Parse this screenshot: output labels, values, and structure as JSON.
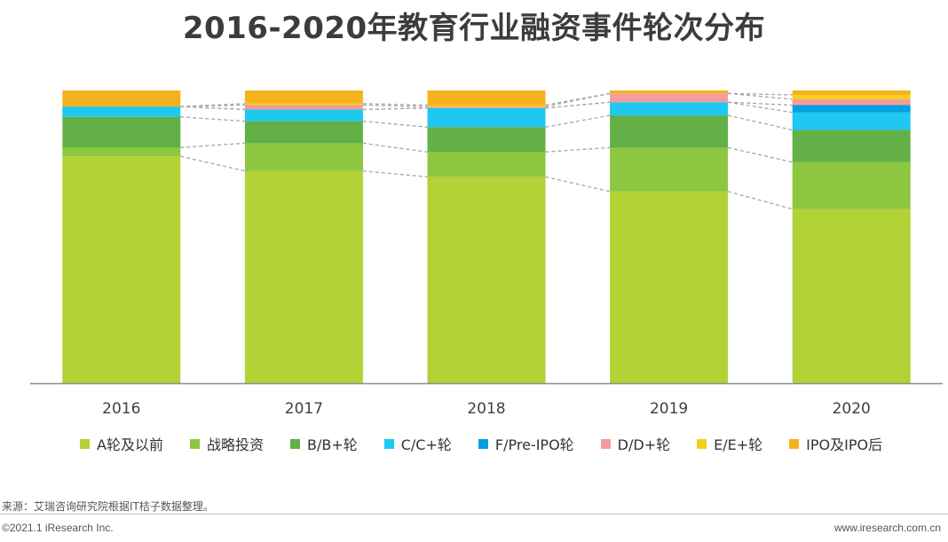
{
  "chart_data": {
    "type": "bar",
    "stacked": true,
    "normalized": true,
    "title": "2016-2020年教育行业融资事件轮次分布",
    "categories": [
      "2016",
      "2017",
      "2018",
      "2019",
      "2020"
    ],
    "ylim": [
      0,
      100
    ],
    "series": [
      {
        "name": "A轮及以前",
        "color": "#b2d235",
        "values": [
          77.5,
          72.5,
          70.5,
          65.5,
          59.5
        ]
      },
      {
        "name": "战略投资",
        "color": "#8dc63f",
        "values": [
          3.0,
          9.5,
          8.5,
          15.0,
          16.0
        ]
      },
      {
        "name": "B/B+轮",
        "color": "#62b046",
        "values": [
          10.5,
          7.5,
          8.5,
          11.0,
          11.0
        ]
      },
      {
        "name": "C/C+轮",
        "color": "#1ec8f0",
        "values": [
          3.5,
          4.0,
          6.5,
          4.5,
          6.0
        ]
      },
      {
        "name": "F/Pre-IPO轮",
        "color": "#00a0e0",
        "values": [
          0.0,
          0.0,
          0.0,
          0.0,
          2.5
        ]
      },
      {
        "name": "D/D+轮",
        "color": "#f49c9c",
        "values": [
          0.0,
          1.5,
          0.5,
          3.0,
          2.0
        ]
      },
      {
        "name": "E/E+轮",
        "color": "#f7ce1b",
        "values": [
          0.0,
          0.5,
          0.5,
          0.0,
          1.5
        ]
      },
      {
        "name": "IPO及IPO后",
        "color": "#f6b21c",
        "values": [
          5.5,
          4.5,
          5.0,
          1.0,
          1.5
        ]
      }
    ]
  },
  "footer": {
    "source": "来源：艾瑞咨询研究院根据IT桔子数据整理。",
    "copyright": "©2021.1 iResearch Inc.",
    "website": "www.iresearch.com.cn"
  }
}
